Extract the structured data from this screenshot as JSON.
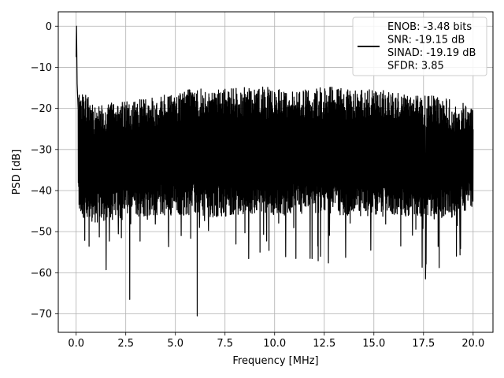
{
  "chart_data": {
    "type": "line",
    "title": "",
    "xlabel": "Frequency [MHz]",
    "ylabel": "PSD [dB]",
    "xlim": [
      -0.9,
      21.0
    ],
    "ylim": [
      -74.5,
      3.5
    ],
    "xticks": [
      0.0,
      2.5,
      5.0,
      7.5,
      10.0,
      12.5,
      15.0,
      17.5,
      20.0
    ],
    "xtick_labels": [
      "0.0",
      "2.5",
      "5.0",
      "7.5",
      "10.0",
      "12.5",
      "15.0",
      "17.5",
      "20.0"
    ],
    "yticks": [
      0,
      -10,
      -20,
      -30,
      -40,
      -50,
      -60,
      -70
    ],
    "ytick_labels": [
      "0",
      "−10",
      "−20",
      "−30",
      "−40",
      "−50",
      "−60",
      "−70"
    ],
    "grid": true,
    "legend_position": "top-right",
    "color": "#000000",
    "series": [
      {
        "name": "ENOB: -3.48 bits\nSNR: -19.15 dB\nSINAD: -19.19 dB\nSFDR: 3.85",
        "x": [
          0.0,
          0.02,
          0.05,
          0.1,
          0.2,
          0.3,
          0.5,
          0.7,
          1.0,
          1.5,
          2.0,
          2.5,
          2.7,
          3.0,
          3.5,
          4.0,
          4.2,
          4.5,
          5.0,
          5.5,
          6.0,
          6.1,
          6.5,
          7.0,
          7.5,
          8.0,
          8.5,
          9.0,
          9.5,
          10.0,
          10.5,
          11.0,
          11.5,
          12.0,
          12.5,
          13.0,
          13.5,
          14.0,
          14.5,
          15.0,
          15.5,
          16.0,
          16.5,
          17.0,
          17.5,
          17.6,
          18.0,
          18.5,
          19.0,
          19.5,
          20.0
        ],
        "y": [
          -7.5,
          0.0,
          -14.0,
          -20.0,
          -35.0,
          -30.0,
          -25.0,
          -45.0,
          -30.0,
          -28.0,
          -32.0,
          -27.0,
          -66.5,
          -30.0,
          -28.0,
          -31.0,
          -54.0,
          -29.0,
          -30.0,
          -27.0,
          -31.0,
          -70.5,
          -29.0,
          -28.0,
          -31.0,
          -30.0,
          -27.0,
          -30.0,
          -29.0,
          -31.0,
          -28.0,
          -30.0,
          -29.0,
          -30.0,
          -28.0,
          -31.0,
          -29.0,
          -30.0,
          -28.0,
          -31.0,
          -29.0,
          -30.0,
          -28.0,
          -31.0,
          -30.0,
          -61.5,
          -28.0,
          -30.0,
          -29.0,
          -31.0,
          -30.0
        ]
      }
    ],
    "noise_envelope": {
      "x": [
        0.1,
        1.0,
        2.0,
        3.0,
        4.0,
        5.0,
        6.0,
        7.0,
        8.0,
        9.0,
        10.0,
        11.0,
        12.0,
        13.0,
        14.0,
        15.0,
        16.0,
        17.0,
        18.0,
        19.0,
        20.0
      ],
      "upper": [
        -15.0,
        -19.0,
        -18.5,
        -18.0,
        -17.0,
        -16.0,
        -15.0,
        -15.5,
        -15.0,
        -14.5,
        -15.0,
        -15.5,
        -15.0,
        -14.8,
        -15.5,
        -15.0,
        -16.0,
        -16.5,
        -17.0,
        -18.0,
        -19.5
      ],
      "lower": [
        -46.0,
        -48.0,
        -47.0,
        -46.5,
        -46.0,
        -46.0,
        -46.0,
        -46.5,
        -46.0,
        -45.5,
        -46.0,
        -46.0,
        -45.5,
        -46.0,
        -46.0,
        -46.5,
        -46.0,
        -46.5,
        -47.0,
        -46.5,
        -44.0
      ]
    }
  }
}
